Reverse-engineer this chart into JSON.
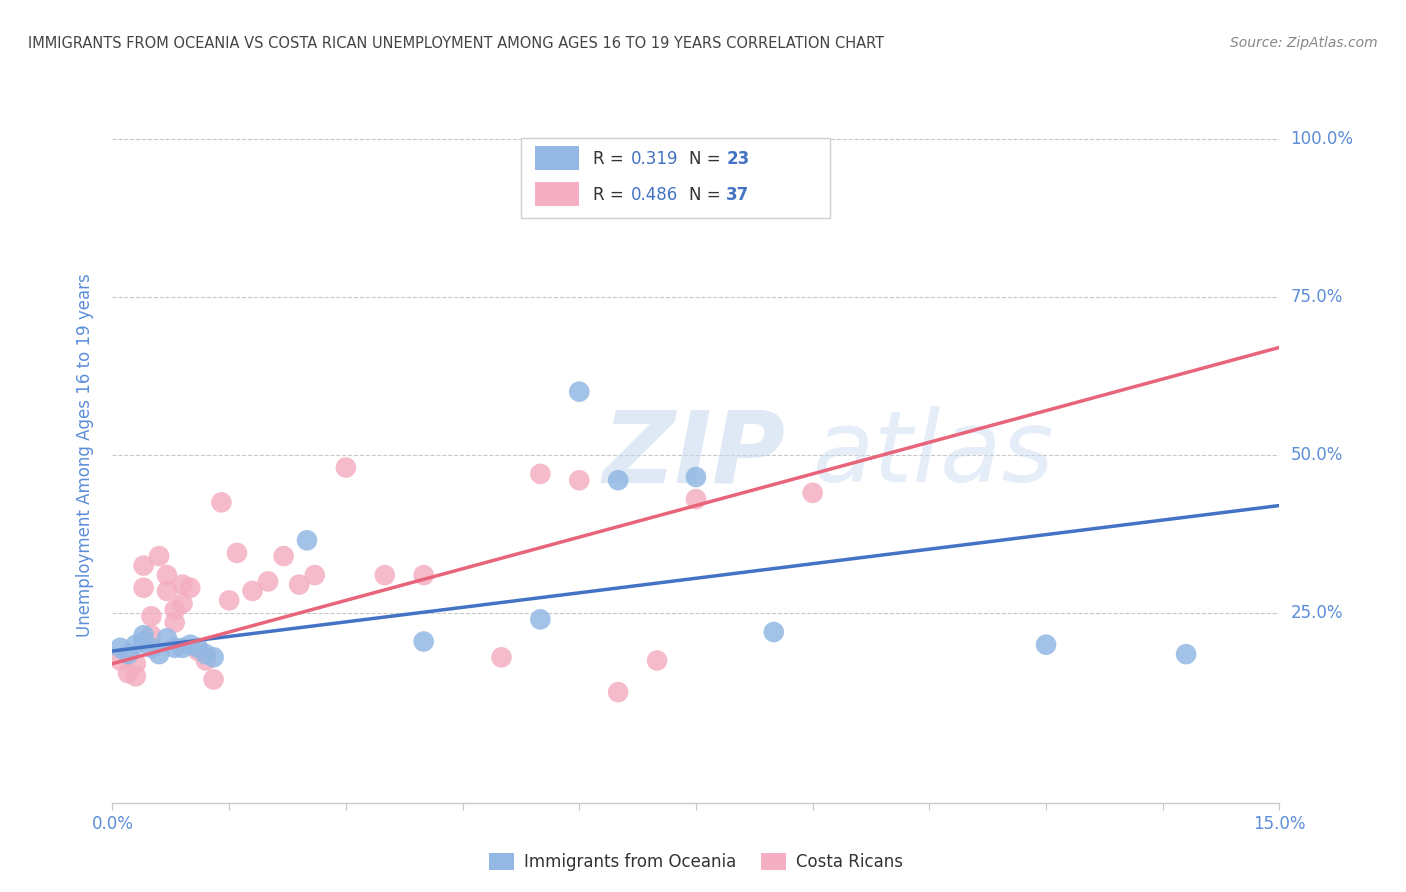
{
  "title": "IMMIGRANTS FROM OCEANIA VS COSTA RICAN UNEMPLOYMENT AMONG AGES 16 TO 19 YEARS CORRELATION CHART",
  "source": "Source: ZipAtlas.com",
  "ylabel": "Unemployment Among Ages 16 to 19 years",
  "xlim": [
    0.0,
    0.15
  ],
  "ylim": [
    -0.05,
    1.05
  ],
  "ytick_positions": [
    0.25,
    0.5,
    0.75,
    1.0
  ],
  "ytick_labels": [
    "25.0%",
    "50.0%",
    "75.0%",
    "100.0%"
  ],
  "blue_color": "#93b8e3",
  "pink_color": "#f4afc2",
  "blue_line_color": "#4472c4",
  "pink_line_color": "#e8647a",
  "R_blue": 0.319,
  "N_blue": 23,
  "R_pink": 0.486,
  "N_pink": 37,
  "blue_scatter_x": [
    0.001,
    0.002,
    0.003,
    0.004,
    0.004,
    0.005,
    0.006,
    0.007,
    0.008,
    0.009,
    0.01,
    0.011,
    0.012,
    0.013,
    0.025,
    0.04,
    0.055,
    0.06,
    0.065,
    0.075,
    0.085,
    0.12,
    0.138
  ],
  "blue_scatter_y": [
    0.195,
    0.185,
    0.2,
    0.205,
    0.215,
    0.195,
    0.185,
    0.21,
    0.195,
    0.195,
    0.2,
    0.195,
    0.185,
    0.18,
    0.365,
    0.205,
    0.24,
    0.6,
    0.46,
    0.465,
    0.22,
    0.2,
    0.185
  ],
  "pink_scatter_x": [
    0.001,
    0.002,
    0.003,
    0.003,
    0.004,
    0.004,
    0.005,
    0.005,
    0.006,
    0.007,
    0.007,
    0.008,
    0.008,
    0.009,
    0.009,
    0.01,
    0.011,
    0.012,
    0.013,
    0.014,
    0.015,
    0.016,
    0.018,
    0.02,
    0.022,
    0.024,
    0.026,
    0.03,
    0.035,
    0.04,
    0.05,
    0.055,
    0.06,
    0.065,
    0.07,
    0.075,
    0.09
  ],
  "pink_scatter_y": [
    0.175,
    0.155,
    0.15,
    0.17,
    0.29,
    0.325,
    0.245,
    0.215,
    0.34,
    0.285,
    0.31,
    0.235,
    0.255,
    0.265,
    0.295,
    0.29,
    0.19,
    0.175,
    0.145,
    0.425,
    0.27,
    0.345,
    0.285,
    0.3,
    0.34,
    0.295,
    0.31,
    0.48,
    0.31,
    0.31,
    0.18,
    0.47,
    0.46,
    0.125,
    0.175,
    0.43,
    0.44
  ],
  "blue_line_y0": 0.19,
  "blue_line_y1": 0.42,
  "pink_line_y0": 0.17,
  "pink_line_y1": 0.67,
  "watermark_zip": "ZIP",
  "watermark_atlas": "atlas",
  "background_color": "#ffffff",
  "grid_color": "#c8c8c8",
  "title_color": "#444444",
  "axis_label_color": "#5b8dd9",
  "tick_label_color": "#5b8dd9",
  "source_color": "#888888"
}
